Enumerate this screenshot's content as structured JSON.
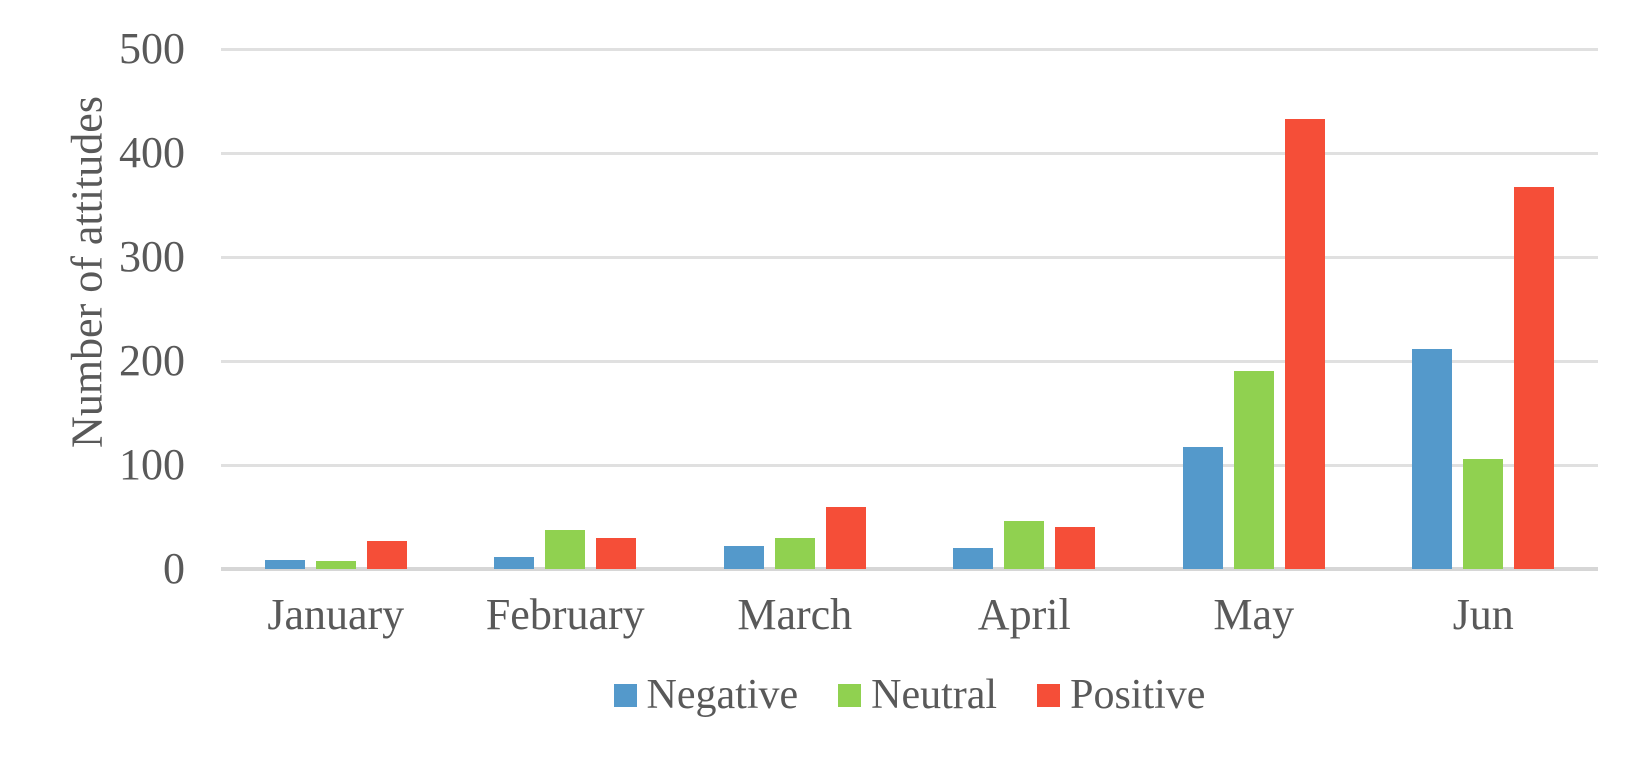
{
  "chart_data": {
    "type": "bar",
    "title": "",
    "xlabel": "",
    "ylabel": "Number of attitudes",
    "categories": [
      "January",
      "February",
      "March",
      "April",
      "May",
      "Jun"
    ],
    "series": [
      {
        "name": "Negative",
        "color": "#5499CB",
        "values": [
          9,
          12,
          22,
          20,
          117,
          212
        ]
      },
      {
        "name": "Neutral",
        "color": "#90D150",
        "values": [
          8,
          38,
          30,
          46,
          190,
          106
        ]
      },
      {
        "name": "Positive",
        "color": "#F54E38",
        "values": [
          27,
          30,
          60,
          40,
          433,
          367
        ]
      }
    ],
    "ylim": [
      0,
      500
    ],
    "yticks": [
      0,
      100,
      200,
      300,
      400,
      500
    ],
    "grid": true,
    "legend_position": "bottom",
    "legend_labels": [
      "Negative",
      "Neutral",
      "Positive"
    ]
  },
  "colors": {
    "text": "#595959",
    "gridline": "#E0E0E0",
    "axis_line": "#D6D6D6",
    "background": "#FFFFFF"
  }
}
